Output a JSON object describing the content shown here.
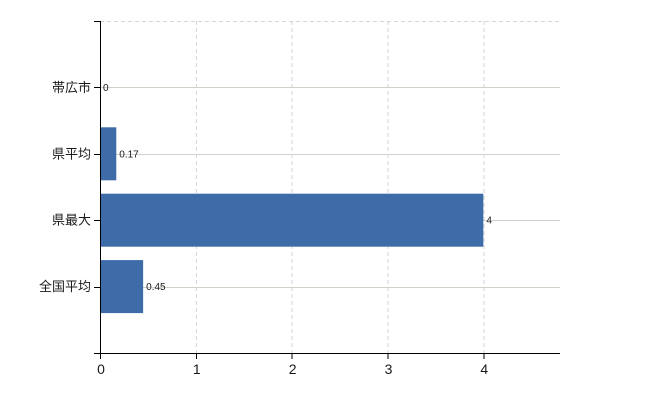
{
  "chart_data": {
    "type": "bar",
    "orientation": "horizontal",
    "title": "",
    "xlabel": "",
    "ylabel": "",
    "categories": [
      "帯広市",
      "県平均",
      "県最大",
      "全国平均"
    ],
    "values": [
      0,
      0.17,
      4,
      0.45
    ],
    "value_labels": [
      "0",
      "0.17",
      "4",
      "0.45"
    ],
    "x_tick_values": [
      0,
      1,
      2,
      3,
      4
    ],
    "x_tick_labels": [
      "0",
      "1",
      "2",
      "3",
      "4"
    ],
    "xlim": [
      0,
      4.8
    ],
    "grid": true,
    "legend": false,
    "colors": {
      "bar": "#3E6CA9",
      "h_gridline": "#cdd5ca",
      "v_gridline": "#d6d6d6",
      "plot_border": "#d6d6d6",
      "axis": "#000000",
      "text": "#1a1a1a",
      "background": "#ffffff"
    }
  }
}
